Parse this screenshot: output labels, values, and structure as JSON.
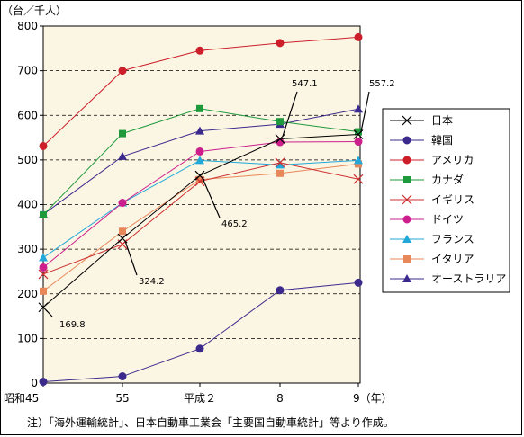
{
  "chart_data": {
    "type": "line",
    "unit_label": "（台／千人）",
    "x_tick_labels": [
      "昭和45",
      "55",
      "平成２",
      "8",
      "9（年）"
    ],
    "ylim": [
      0,
      800
    ],
    "y_ticks": [
      0,
      100,
      200,
      300,
      400,
      500,
      600,
      700,
      800
    ],
    "grid": "horizontal dashed",
    "legend_position": "right",
    "series": [
      {
        "name": "日本",
        "color": "#000000",
        "marker": "x",
        "values": [
          169.8,
          324.2,
          465.2,
          547.1,
          557.2
        ]
      },
      {
        "name": "韓国",
        "color": "#3b2a8c",
        "marker": "circle",
        "values": [
          3,
          15,
          77,
          208,
          225
        ]
      },
      {
        "name": "アメリカ",
        "color": "#cc1f2a",
        "marker": "circle",
        "values": [
          531,
          700,
          745,
          762,
          775
        ]
      },
      {
        "name": "カナダ",
        "color": "#1e9a3c",
        "marker": "square",
        "values": [
          377,
          559,
          615,
          586,
          563
        ]
      },
      {
        "name": "イギリス",
        "color": "#cc2f2f",
        "marker": "x",
        "values": [
          244,
          311,
          452,
          494,
          457
        ]
      },
      {
        "name": "ドイツ",
        "color": "#cc1f8c",
        "marker": "circle",
        "values": [
          259,
          404,
          519,
          540,
          541
        ]
      },
      {
        "name": "フランス",
        "color": "#21a8d8",
        "marker": "triangle",
        "values": [
          281,
          404,
          499,
          489,
          499
        ]
      },
      {
        "name": "イタリア",
        "color": "#e8875a",
        "marker": "square",
        "values": [
          206,
          340,
          456,
          470,
          491
        ]
      },
      {
        "name": "オーストラリア",
        "color": "#3b2a8c",
        "marker": "triangle",
        "values": [
          378,
          508,
          565,
          580,
          614
        ]
      }
    ],
    "annotations": [
      {
        "text": "169.8",
        "series": "日本",
        "point_index": 0
      },
      {
        "text": "324.2",
        "series": "日本",
        "point_index": 1
      },
      {
        "text": "465.2",
        "series": "日本",
        "point_index": 2
      },
      {
        "text": "547.1",
        "series": "日本",
        "point_index": 3
      },
      {
        "text": "557.2",
        "series": "日本",
        "point_index": 4
      }
    ]
  },
  "footnote": "注）「海外運輸統計」、日本自動車工業会「主要国自動車統計」等より作成。"
}
